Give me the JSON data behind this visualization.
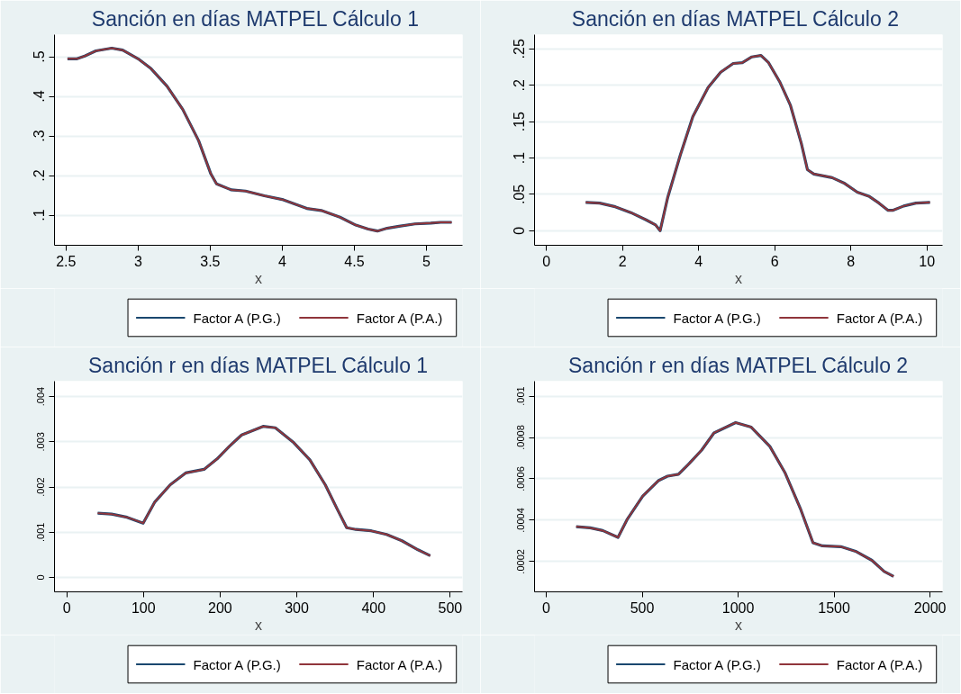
{
  "chart_data": [
    {
      "type": "line",
      "title": "Sanción  en días MATPEL Cálculo 1",
      "xlabel": "x",
      "legend": "bottom",
      "grid": "y",
      "xlim": [
        2.42,
        5.25
      ],
      "xticks": [
        2.5,
        3,
        3.5,
        4,
        4.5,
        5
      ],
      "ylim": [
        0.024,
        0.556
      ],
      "yticks": [
        {
          "value": 0.1,
          "label": ".1"
        },
        {
          "value": 0.2,
          "label": ".2"
        },
        {
          "value": 0.3,
          "label": ".3"
        },
        {
          "value": 0.4,
          "label": ".4"
        },
        {
          "value": 0.5,
          "label": ".5"
        }
      ],
      "x": [
        2.51,
        2.576,
        2.63,
        2.707,
        2.817,
        2.893,
        3.0,
        3.09,
        3.2,
        3.31,
        3.42,
        3.505,
        3.544,
        3.646,
        3.745,
        3.876,
        4.007,
        4.17,
        4.27,
        4.4,
        4.51,
        4.596,
        4.66,
        4.727,
        4.81,
        4.92,
        5.03,
        5.098,
        5.175
      ],
      "series": [
        {
          "name": "Factor A (P.G.)",
          "color": "#1a476f",
          "values": [
            0.495,
            0.495,
            0.502,
            0.515,
            0.522,
            0.517,
            0.495,
            0.47,
            0.426,
            0.367,
            0.288,
            0.204,
            0.179,
            0.164,
            0.161,
            0.149,
            0.139,
            0.117,
            0.112,
            0.095,
            0.075,
            0.065,
            0.06,
            0.067,
            0.072,
            0.078,
            0.08,
            0.082,
            0.082
          ]
        },
        {
          "name": "Factor A (P.A.)",
          "color": "#90353b",
          "values": [
            0.495,
            0.495,
            0.502,
            0.515,
            0.522,
            0.517,
            0.495,
            0.47,
            0.426,
            0.367,
            0.288,
            0.204,
            0.179,
            0.164,
            0.161,
            0.149,
            0.139,
            0.117,
            0.112,
            0.095,
            0.075,
            0.065,
            0.06,
            0.067,
            0.072,
            0.078,
            0.08,
            0.082,
            0.082
          ]
        }
      ]
    },
    {
      "type": "line",
      "title": "Sanción  en días MATPEL Cálculo 2",
      "xlabel": "x",
      "legend": "bottom",
      "grid": "y",
      "xlim": [
        -0.31,
        10.41
      ],
      "xticks": [
        0,
        2,
        4,
        6,
        8,
        10
      ],
      "ylim": [
        -0.02,
        0.2696
      ],
      "yticks": [
        0,
        {
          "value": 0.05,
          "label": ".05"
        },
        {
          "value": 0.1,
          "label": ".1"
        },
        {
          "value": 0.15,
          "label": ".15"
        },
        {
          "value": 0.2,
          "label": ".2"
        },
        {
          "value": 0.25,
          "label": ".25"
        }
      ],
      "x": [
        1.035,
        1.4,
        1.81,
        2.22,
        2.62,
        2.87,
        2.99,
        3.19,
        3.52,
        3.85,
        4.25,
        4.58,
        4.91,
        5.15,
        5.4,
        5.64,
        5.84,
        6.13,
        6.41,
        6.7,
        6.86,
        7.03,
        7.51,
        7.84,
        8.17,
        8.49,
        8.74,
        8.98,
        9.1,
        9.39,
        9.71,
        10.08
      ],
      "series": [
        {
          "name": "Factor A (P.G.)",
          "color": "#1a476f",
          "values": [
            0.039,
            0.038,
            0.033,
            0.025,
            0.015,
            0.008,
            0,
            0.046,
            0.104,
            0.157,
            0.197,
            0.218,
            0.23,
            0.231,
            0.239,
            0.241,
            0.231,
            0.205,
            0.173,
            0.12,
            0.084,
            0.078,
            0.073,
            0.065,
            0.053,
            0.047,
            0.038,
            0.028,
            0.028,
            0.034,
            0.038,
            0.039
          ]
        },
        {
          "name": "Factor A (P.A.)",
          "color": "#90353b",
          "values": [
            0.039,
            0.038,
            0.033,
            0.025,
            0.015,
            0.008,
            0,
            0.046,
            0.104,
            0.157,
            0.197,
            0.218,
            0.23,
            0.231,
            0.239,
            0.241,
            0.231,
            0.205,
            0.173,
            0.12,
            0.084,
            0.078,
            0.073,
            0.065,
            0.053,
            0.047,
            0.038,
            0.028,
            0.028,
            0.034,
            0.038,
            0.039
          ]
        }
      ]
    },
    {
      "type": "line",
      "title": "Sanción r en días MATPEL Cálculo 1",
      "xlabel": "x",
      "legend": "bottom",
      "grid": "y",
      "xlim": [
        -16,
        516
      ],
      "xticks": [
        0,
        100,
        200,
        300,
        400,
        500
      ],
      "ylim": [
        -0.00032,
        0.00434
      ],
      "yticks": [
        0,
        {
          "value": 0.001,
          "label": ".001"
        },
        {
          "value": 0.002,
          "label": ".002"
        },
        {
          "value": 0.003,
          "label": ".003"
        },
        {
          "value": 0.004,
          "label": ".004"
        }
      ],
      "x": [
        40.3,
        58.5,
        78.6,
        99.6,
        114.9,
        135,
        155,
        179,
        196,
        212,
        228,
        256,
        272,
        296,
        317,
        337,
        353,
        365,
        377,
        397,
        417,
        437,
        458,
        474
      ],
      "series": [
        {
          "name": "Factor A (P.G.)",
          "color": "#1a476f",
          "values": [
            0.00142,
            0.0014,
            0.00133,
            0.0012,
            0.00167,
            0.00205,
            0.00231,
            0.00239,
            0.00262,
            0.0029,
            0.00315,
            0.00334,
            0.00331,
            0.00298,
            0.0026,
            0.00205,
            0.0015,
            0.0011,
            0.00106,
            0.00103,
            0.00095,
            0.00081,
            0.00061,
            0.00048
          ]
        },
        {
          "name": "Factor A (P.A.)",
          "color": "#90353b",
          "values": [
            0.00142,
            0.0014,
            0.00133,
            0.0012,
            0.00167,
            0.00205,
            0.00231,
            0.00239,
            0.00262,
            0.0029,
            0.00315,
            0.00334,
            0.00331,
            0.00298,
            0.0026,
            0.00205,
            0.0015,
            0.0011,
            0.00106,
            0.00103,
            0.00095,
            0.00081,
            0.00061,
            0.00048
          ]
        }
      ]
    },
    {
      "type": "line",
      "title": "Sanción r en días MATPEL Cálculo 2",
      "xlabel": "x",
      "legend": "bottom",
      "grid": "y",
      "xlim": [
        -61,
        2065
      ],
      "xticks": [
        0,
        500,
        1000,
        1500,
        2000
      ],
      "ylim": [
        5.37e-05,
        0.001072
      ],
      "yticks": [
        {
          "value": 0.0002,
          "label": ".0002"
        },
        {
          "value": 0.0004,
          "label": ".0004"
        },
        {
          "value": 0.0006,
          "label": ".0006"
        },
        {
          "value": 0.0008,
          "label": ".0008"
        },
        {
          "value": 0.001,
          "label": ".001"
        }
      ],
      "x": [
        156,
        229,
        294,
        374,
        423,
        503,
        584,
        632,
        689,
        745,
        810,
        874,
        987,
        1068,
        1165,
        1245,
        1326,
        1390,
        1439,
        1535,
        1616,
        1697,
        1761,
        1810
      ],
      "series": [
        {
          "name": "Factor A (P.G.)",
          "color": "#1a476f",
          "values": [
            0.000369,
            0.000363,
            0.00035,
            0.000317,
            0.000406,
            0.000517,
            0.000591,
            0.000613,
            0.000622,
            0.000674,
            0.000739,
            0.000822,
            0.000872,
            0.00085,
            0.000757,
            0.000628,
            0.000452,
            0.000291,
            0.000276,
            0.000272,
            0.000248,
            0.000206,
            0.000152,
            0.000128
          ]
        },
        {
          "name": "Factor A (P.A.)",
          "color": "#90353b",
          "values": [
            0.000369,
            0.000363,
            0.00035,
            0.000317,
            0.000406,
            0.000517,
            0.000591,
            0.000613,
            0.000622,
            0.000674,
            0.000739,
            0.000822,
            0.000872,
            0.00085,
            0.000757,
            0.000628,
            0.000452,
            0.000291,
            0.000276,
            0.000272,
            0.000248,
            0.000206,
            0.000152,
            0.000128
          ]
        }
      ]
    }
  ]
}
